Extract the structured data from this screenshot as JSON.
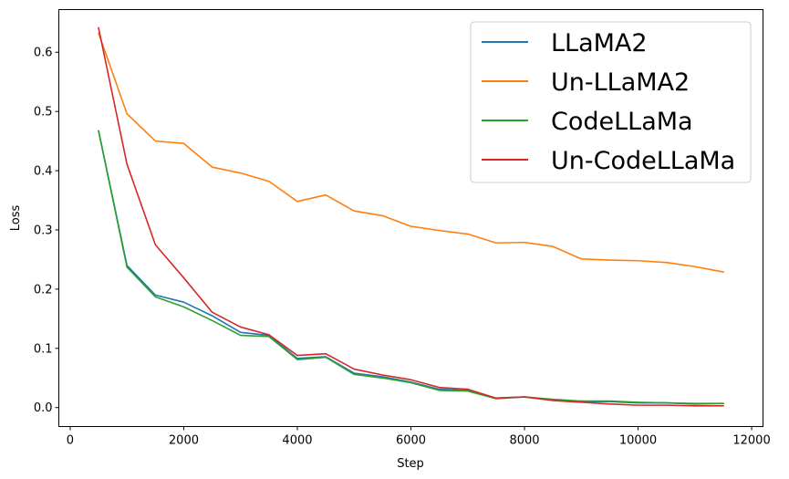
{
  "chart_data": {
    "type": "line",
    "xlabel": "Step",
    "ylabel": "Loss",
    "xlim": [
      -200,
      12200
    ],
    "ylim": [
      -0.032,
      0.672
    ],
    "xticks": [
      0,
      2000,
      4000,
      6000,
      8000,
      10000,
      12000
    ],
    "xtick_labels": [
      "0",
      "2000",
      "4000",
      "6000",
      "8000",
      "10000",
      "12000"
    ],
    "yticks": [
      0.0,
      0.1,
      0.2,
      0.3,
      0.4,
      0.5,
      0.6
    ],
    "ytick_labels": [
      "0.0",
      "0.1",
      "0.2",
      "0.3",
      "0.4",
      "0.5",
      "0.6"
    ],
    "grid": false,
    "legend_position": "top-right",
    "x": [
      500,
      1000,
      1500,
      2000,
      2500,
      3000,
      3500,
      4000,
      4500,
      5000,
      5500,
      6000,
      6500,
      7000,
      7500,
      8000,
      8500,
      9000,
      9500,
      10000,
      10500,
      11000,
      11500
    ],
    "series": [
      {
        "name": "LLaMA2",
        "color": "#1f77b4",
        "values": [
          0.467,
          0.24,
          0.19,
          0.178,
          0.155,
          0.127,
          0.122,
          0.083,
          0.086,
          0.058,
          0.052,
          0.043,
          0.031,
          0.029,
          0.016,
          0.018,
          0.013,
          0.01,
          0.01,
          0.008,
          0.008,
          0.006,
          0.007
        ]
      },
      {
        "name": "Un-LLaMA2",
        "color": "#ff7f0e",
        "values": [
          0.632,
          0.496,
          0.45,
          0.446,
          0.406,
          0.396,
          0.382,
          0.348,
          0.359,
          0.332,
          0.324,
          0.306,
          0.299,
          0.293,
          0.278,
          0.279,
          0.272,
          0.251,
          0.249,
          0.248,
          0.245,
          0.238,
          0.229
        ]
      },
      {
        "name": "CodeLLaMa",
        "color": "#2ca02c",
        "values": [
          0.467,
          0.237,
          0.187,
          0.17,
          0.147,
          0.122,
          0.12,
          0.081,
          0.085,
          0.056,
          0.05,
          0.042,
          0.029,
          0.028,
          0.015,
          0.018,
          0.014,
          0.011,
          0.011,
          0.009,
          0.008,
          0.007,
          0.007
        ]
      },
      {
        "name": "Un-CodeLLaMa",
        "color": "#d62728",
        "values": [
          0.641,
          0.411,
          0.275,
          0.219,
          0.161,
          0.136,
          0.123,
          0.088,
          0.091,
          0.065,
          0.055,
          0.047,
          0.034,
          0.031,
          0.016,
          0.018,
          0.012,
          0.009,
          0.006,
          0.004,
          0.004,
          0.003,
          0.003
        ]
      }
    ]
  }
}
